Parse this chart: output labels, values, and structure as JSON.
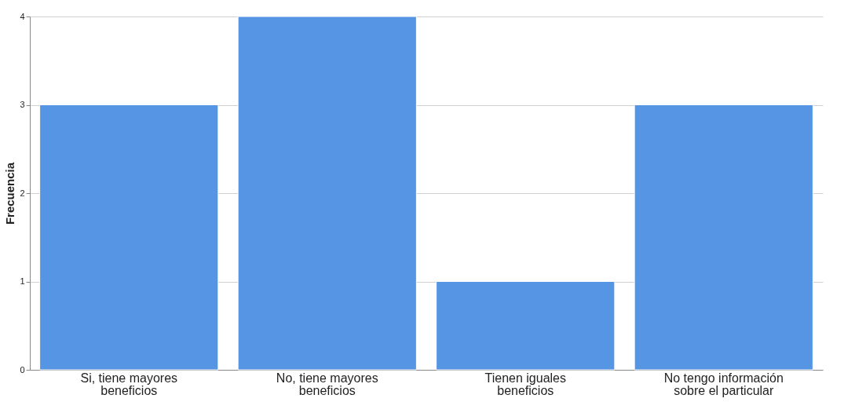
{
  "chart_data": {
    "type": "bar",
    "ylabel": "Frecuencia",
    "categories": [
      "Si, tiene mayores\nbeneficios",
      "No, tiene mayores\nbeneficios",
      "Tienen iguales\nbeneficios",
      "No tengo información\nsobre el particular"
    ],
    "values": [
      3,
      4,
      1,
      3
    ],
    "color": "#5595e3",
    "ylim": [
      0,
      4
    ],
    "yticks": [
      0,
      1,
      2,
      3,
      4
    ],
    "grid": "y"
  }
}
